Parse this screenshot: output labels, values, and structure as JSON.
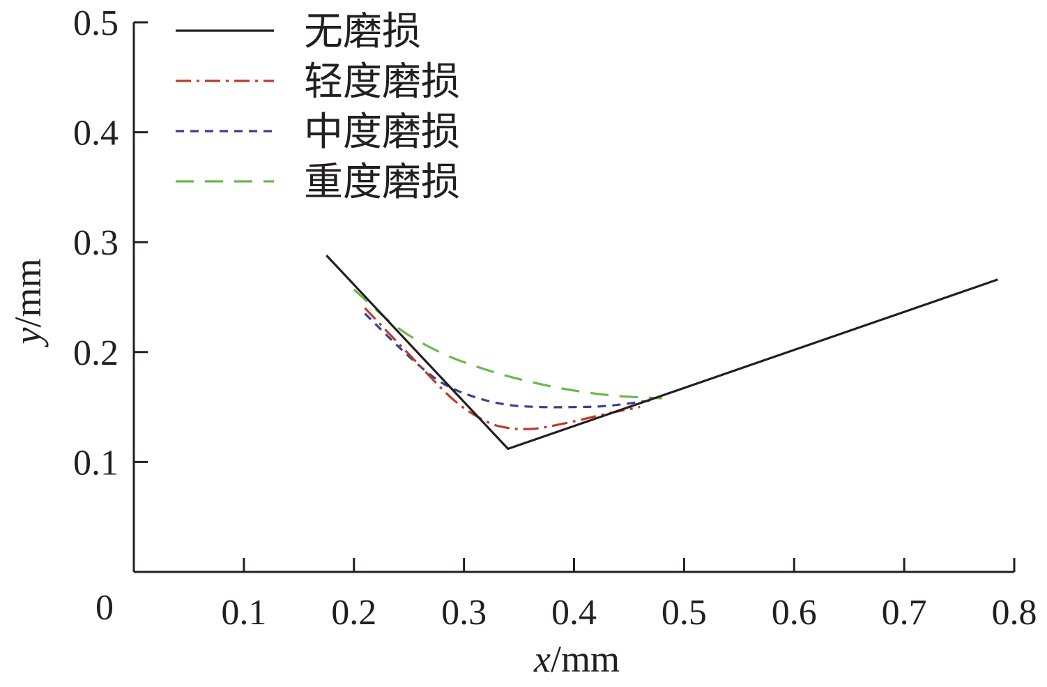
{
  "chart_data": {
    "type": "line",
    "title": "",
    "xlabel": {
      "var": "x",
      "unit": "/mm"
    },
    "ylabel": {
      "var": "y",
      "unit": "/mm"
    },
    "xlim": [
      0,
      0.8
    ],
    "ylim": [
      0,
      0.5
    ],
    "xticks": [
      0.1,
      0.2,
      0.3,
      0.4,
      0.5,
      0.6,
      0.7,
      0.8
    ],
    "yticks": [
      0.1,
      0.2,
      0.3,
      0.4,
      0.5
    ],
    "xtick_labels": [
      "0.1",
      "0.2",
      "0.3",
      "0.4",
      "0.5",
      "0.6",
      "0.7",
      "0.8"
    ],
    "ytick_labels": [
      "0.1",
      "0.2",
      "0.3",
      "0.4",
      "0.5"
    ],
    "origin_label": "0",
    "grid": false,
    "legend_position": "top-left",
    "series": [
      {
        "name": "无磨损",
        "color": "#231f20",
        "dash": "solid",
        "x": [
          0.175,
          0.34,
          0.785
        ],
        "y": [
          0.288,
          0.112,
          0.266
        ]
      },
      {
        "name": "轻度磨损",
        "color": "#c0392b",
        "dash": "dashdot",
        "x": [
          0.21,
          0.25,
          0.29,
          0.32,
          0.34,
          0.355,
          0.37,
          0.4,
          0.43,
          0.46
        ],
        "y": [
          0.24,
          0.198,
          0.157,
          0.137,
          0.131,
          0.13,
          0.131,
          0.137,
          0.144,
          0.15
        ]
      },
      {
        "name": "中度磨损",
        "color": "#3b3f8f",
        "dash": "dashed-short",
        "x": [
          0.21,
          0.25,
          0.28,
          0.31,
          0.34,
          0.37,
          0.4,
          0.43,
          0.47
        ],
        "y": [
          0.235,
          0.196,
          0.172,
          0.159,
          0.152,
          0.15,
          0.15,
          0.151,
          0.156
        ]
      },
      {
        "name": "重度磨损",
        "color": "#6ab84a",
        "dash": "dashed-long",
        "x": [
          0.2,
          0.24,
          0.28,
          0.32,
          0.36,
          0.4,
          0.44,
          0.48
        ],
        "y": [
          0.257,
          0.222,
          0.199,
          0.184,
          0.173,
          0.165,
          0.16,
          0.158
        ]
      }
    ]
  }
}
